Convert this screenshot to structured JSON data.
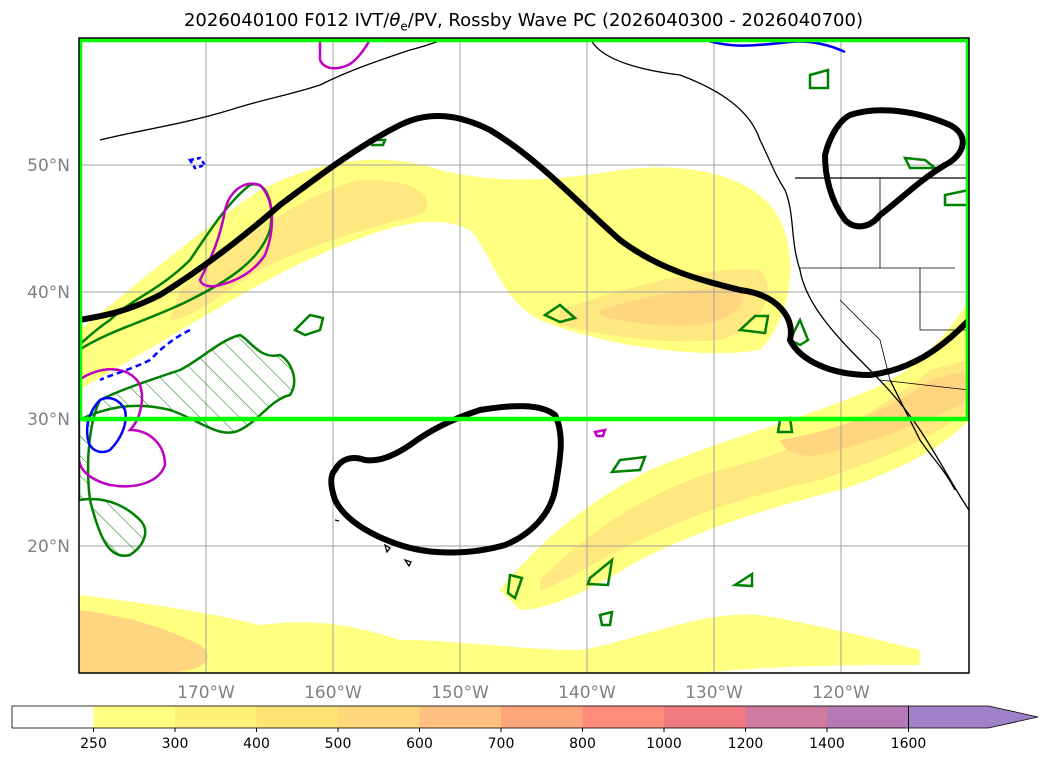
{
  "title": {
    "prefix": "2026040100 F012 IVT/",
    "theta": "θ",
    "theta_sub": "e",
    "suffix": "/PV, Rossby Wave PC (2026040300 - 2026040700)"
  },
  "axes": {
    "lat_labels": [
      "50°N",
      "40°N",
      "30°N",
      "20°N"
    ],
    "lon_labels": [
      "170°W",
      "160°W",
      "150°W",
      "140°W",
      "130°W",
      "120°W"
    ]
  },
  "colorbar": {
    "levels": [
      "250",
      "300",
      "400",
      "500",
      "600",
      "700",
      "800",
      "1000",
      "1200",
      "1400",
      "1600"
    ],
    "colors": [
      "#ffffff",
      "#ffff80",
      "#fff07a",
      "#ffe373",
      "#ffd67a",
      "#ffc080",
      "#ffa57a",
      "#ff8c7a",
      "#f07a80",
      "#d07aa0",
      "#b57ab5",
      "#a080c8"
    ]
  },
  "colors": {
    "box": "#00ff00",
    "contour": "#000000",
    "green_contour": "#008000",
    "magenta_contour": "#c000c0",
    "blue_contour": "#0000ff",
    "ivt_light": "#ffff80",
    "ivt_mid": "#ffe880",
    "ivt_strong": "#ffd580"
  }
}
